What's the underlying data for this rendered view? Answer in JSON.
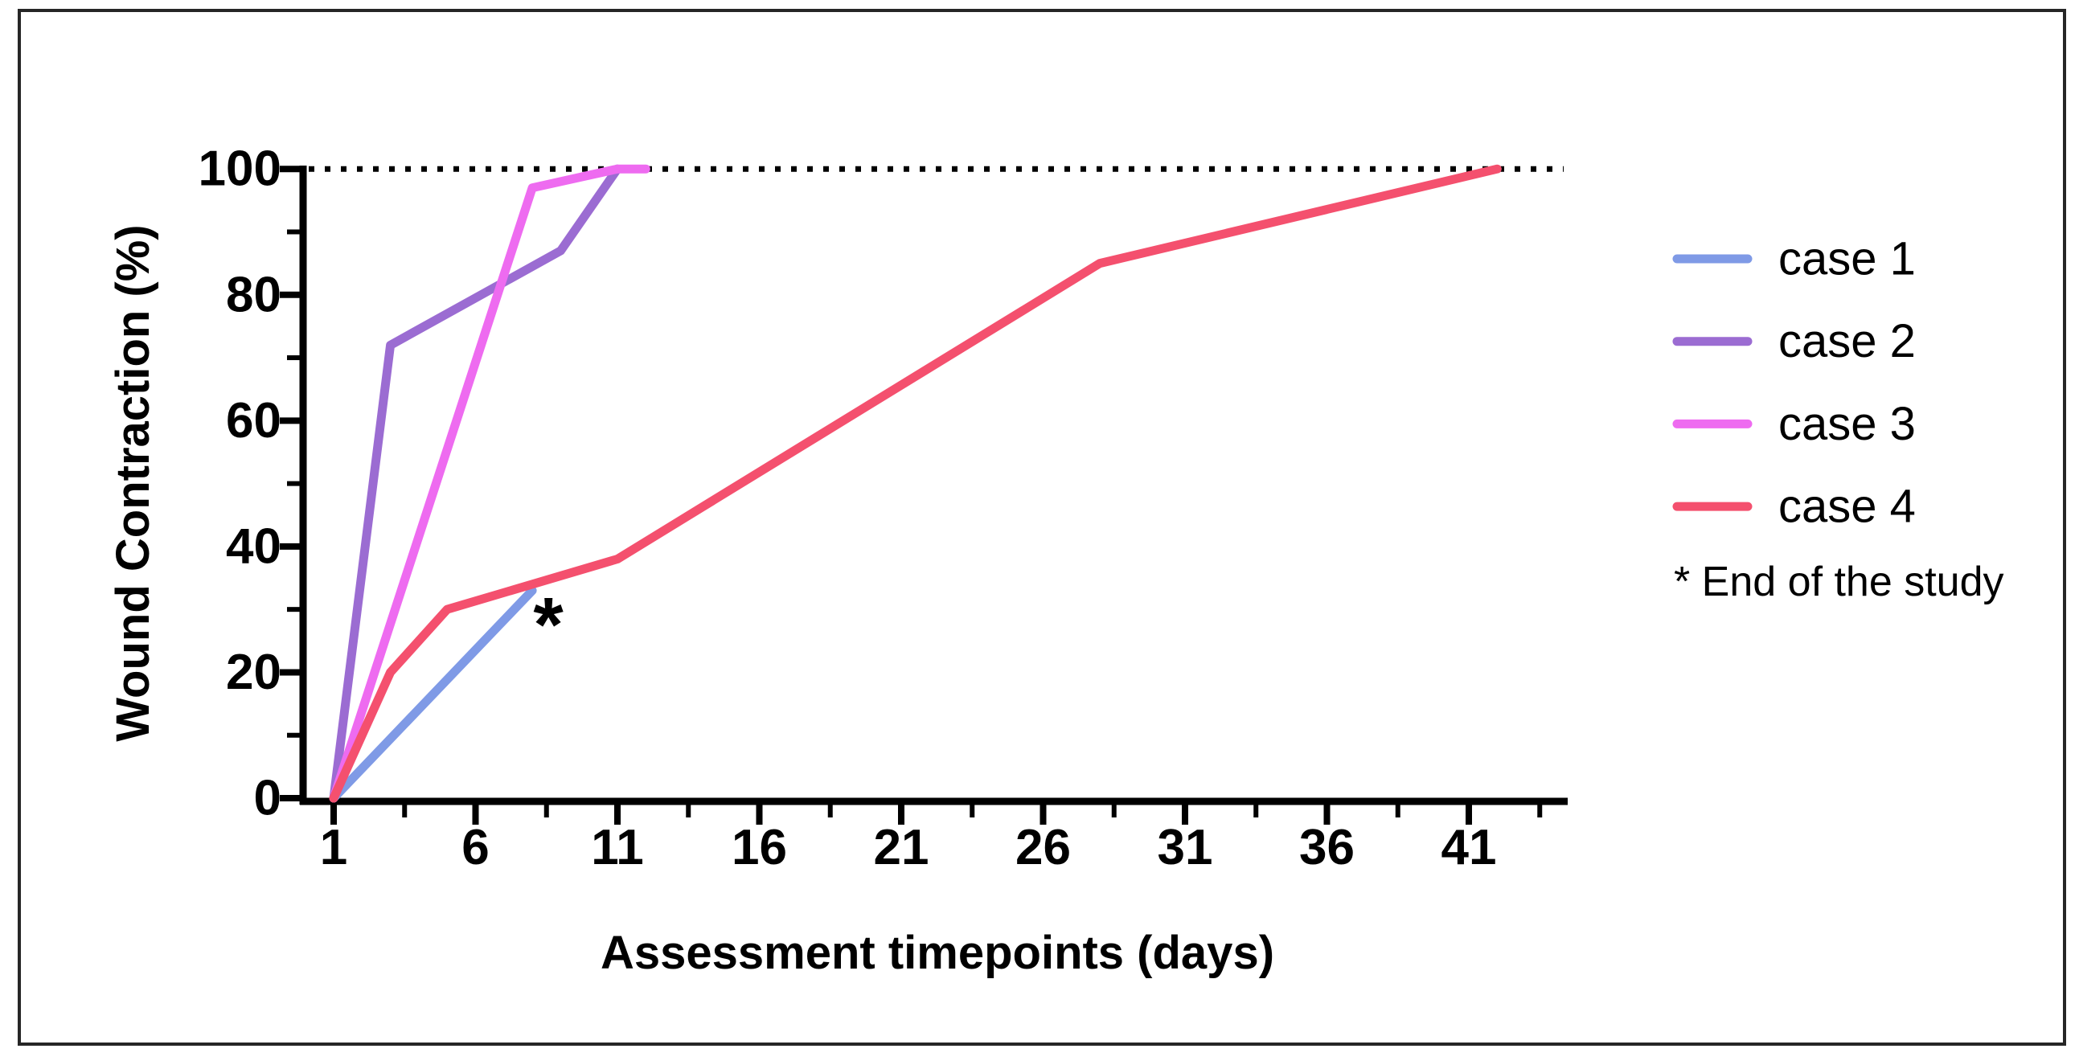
{
  "chart_data": {
    "type": "line",
    "title": "",
    "xlabel": "Assessment timepoints (days)",
    "ylabel": "Wound Contraction (%)",
    "xlim": [
      1,
      44
    ],
    "ylim": [
      0,
      100
    ],
    "x_major_ticks": [
      1,
      6,
      11,
      16,
      21,
      26,
      31,
      36,
      41
    ],
    "x_minor_ticks": [
      3.5,
      8.5,
      13.5,
      18.5,
      23.5,
      28.5,
      33.5,
      38.5,
      43.5
    ],
    "y_major_ticks": [
      0,
      20,
      40,
      60,
      80,
      100
    ],
    "y_minor_ticks": [
      10,
      30,
      50,
      70,
      90
    ],
    "grid": false,
    "reference_line": {
      "y": 100,
      "style": "dotted",
      "color": "#000000"
    },
    "legend_position": "right",
    "series": [
      {
        "name": "case 1",
        "color": "#7f9ae6",
        "points": [
          [
            1,
            0
          ],
          [
            8,
            33
          ]
        ]
      },
      {
        "name": "case 2",
        "color": "#9b6cd2",
        "points": [
          [
            1,
            0
          ],
          [
            3,
            72
          ],
          [
            9,
            87
          ],
          [
            11,
            100
          ]
        ]
      },
      {
        "name": "case 3",
        "color": "#ee6bf0",
        "points": [
          [
            1,
            0
          ],
          [
            8,
            97
          ],
          [
            11,
            100
          ],
          [
            12,
            100
          ]
        ]
      },
      {
        "name": "case 4",
        "color": "#f4506e",
        "points": [
          [
            1,
            0
          ],
          [
            3,
            20
          ],
          [
            5,
            30
          ],
          [
            11,
            38
          ],
          [
            28,
            85
          ],
          [
            42,
            100
          ]
        ]
      }
    ],
    "annotations": [
      {
        "text": "*",
        "x": 8.6,
        "y": 30,
        "meaning": "End of the study"
      }
    ],
    "note": "* End of the study"
  }
}
